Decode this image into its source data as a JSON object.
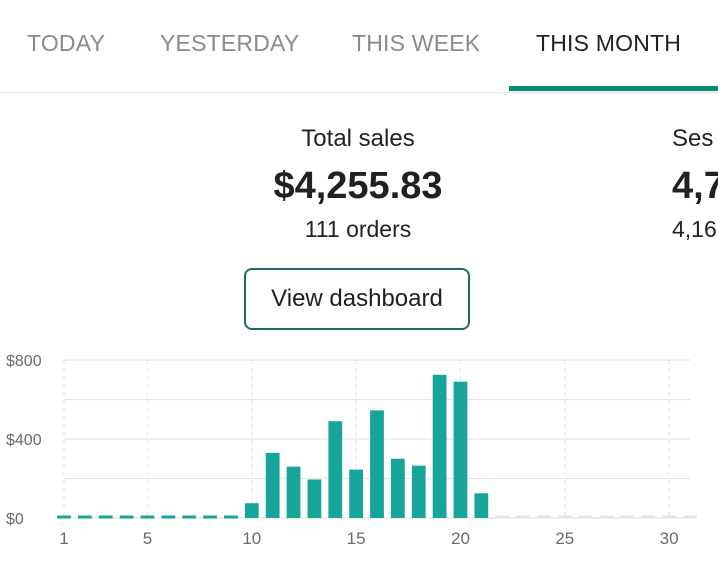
{
  "tabs": [
    {
      "label": "TODAY"
    },
    {
      "label": "YESTERDAY"
    },
    {
      "label": "THIS WEEK"
    },
    {
      "label": "THIS MONTH",
      "active": true
    }
  ],
  "accent_color": "#0f8b7c",
  "stats": {
    "sales": {
      "label": "Total sales",
      "value": "$4,255.83",
      "sub": "111 orders"
    },
    "sessions": {
      "label": "Ses",
      "value": "4,7",
      "sub": "4,16"
    }
  },
  "dashboard_button": {
    "label": "View dashboard"
  },
  "chart_data": {
    "type": "bar",
    "y_ticks": [
      "$800",
      "$400",
      "$0"
    ],
    "y_tick_values": [
      800,
      400,
      0
    ],
    "ylim": [
      0,
      800
    ],
    "x_ticks": [
      "1",
      "5",
      "10",
      "15",
      "20",
      "25",
      "30"
    ],
    "x_tick_values": [
      1,
      5,
      10,
      15,
      20,
      25,
      30
    ],
    "xlim": [
      1,
      31
    ],
    "grid": true,
    "bar_color": "#17a49a",
    "x": [
      1,
      2,
      3,
      4,
      5,
      6,
      7,
      8,
      9,
      10,
      11,
      12,
      13,
      14,
      15,
      16,
      17,
      18,
      19,
      20,
      21,
      22,
      23,
      24,
      25,
      26,
      27,
      28,
      29,
      30,
      31
    ],
    "values": [
      0,
      0,
      0,
      0,
      0,
      0,
      0,
      0,
      0,
      75,
      330,
      260,
      195,
      490,
      245,
      545,
      300,
      265,
      725,
      690,
      125,
      0,
      0,
      0,
      0,
      0,
      0,
      0,
      0,
      0,
      0
    ],
    "future_from_day": 22
  }
}
